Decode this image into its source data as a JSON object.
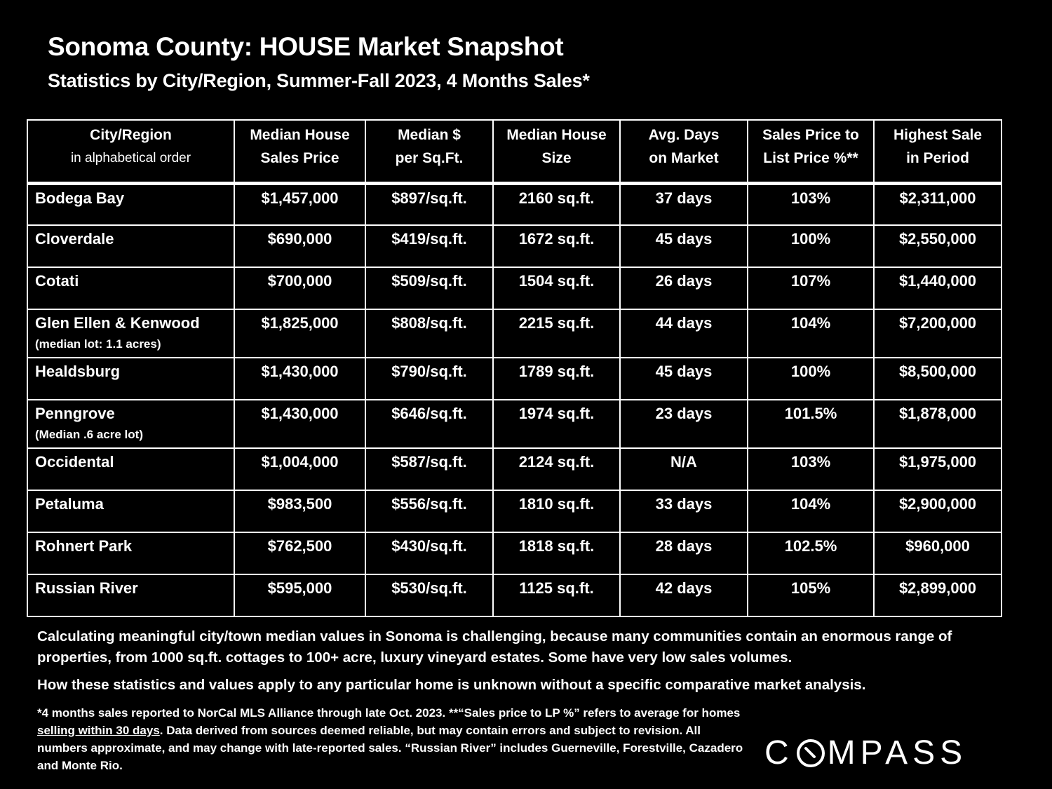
{
  "title": "Sonoma County: HOUSE Market Snapshot",
  "subtitle": "Statistics by City/Region, Summer-Fall 2023, 4 Months Sales*",
  "table": {
    "headers": [
      {
        "line1": "City/Region",
        "line2": "in alphabetical order"
      },
      {
        "line1": "Median House",
        "line2": "Sales Price"
      },
      {
        "line1": "Median $",
        "line2": "per Sq.Ft."
      },
      {
        "line1": "Median House",
        "line2": "Size"
      },
      {
        "line1": "Avg. Days",
        "line2": "on Market"
      },
      {
        "line1": "Sales Price to",
        "line2": "List Price %**"
      },
      {
        "line1": "Highest Sale",
        "line2": "in Period"
      }
    ],
    "rows": [
      {
        "city": "Bodega Bay",
        "note": "",
        "price": "$1,457,000",
        "psf": "$897/sq.ft.",
        "size": "2160 sq.ft.",
        "dom": "37 days",
        "spl": "103%",
        "high": "$2,311,000"
      },
      {
        "city": "Cloverdale",
        "note": "",
        "price": "$690,000",
        "psf": "$419/sq.ft.",
        "size": "1672 sq.ft.",
        "dom": "45 days",
        "spl": "100%",
        "high": "$2,550,000"
      },
      {
        "city": "Cotati",
        "note": "",
        "price": "$700,000",
        "psf": "$509/sq.ft.",
        "size": "1504 sq.ft.",
        "dom": "26 days",
        "spl": "107%",
        "high": "$1,440,000"
      },
      {
        "city": "Glen Ellen & Kenwood",
        "note": "(median lot:  1.1 acres)",
        "price": "$1,825,000",
        "psf": "$808/sq.ft.",
        "size": "2215 sq.ft.",
        "dom": "44 days",
        "spl": "104%",
        "high": "$7,200,000"
      },
      {
        "city": "Healdsburg",
        "note": "",
        "price": "$1,430,000",
        "psf": "$790/sq.ft.",
        "size": "1789 sq.ft.",
        "dom": "45 days",
        "spl": "100%",
        "high": "$8,500,000"
      },
      {
        "city": "Penngrove",
        "note": "(Median .6 acre lot)",
        "price": "$1,430,000",
        "psf": "$646/sq.ft.",
        "size": "1974 sq.ft.",
        "dom": "23 days",
        "spl": "101.5%",
        "high": "$1,878,000"
      },
      {
        "city": "Occidental",
        "note": "",
        "price": "$1,004,000",
        "psf": "$587/sq.ft.",
        "size": "2124 sq.ft.",
        "dom": "N/A",
        "spl": "103%",
        "high": "$1,975,000"
      },
      {
        "city": "Petaluma",
        "note": "",
        "price": "$983,500",
        "psf": "$556/sq.ft.",
        "size": "1810 sq.ft.",
        "dom": "33 days",
        "spl": "104%",
        "high": "$2,900,000"
      },
      {
        "city": "Rohnert Park",
        "note": "",
        "price": "$762,500",
        "psf": "$430/sq.ft.",
        "size": "1818 sq.ft.",
        "dom": "28 days",
        "spl": "102.5%",
        "high": "$960,000"
      },
      {
        "city": "Russian River",
        "note": "",
        "price": "$595,000",
        "psf": "$530/sq.ft.",
        "size": "1125 sq.ft.",
        "dom": "42 days",
        "spl": "105%",
        "high": "$2,899,000"
      }
    ]
  },
  "notes": {
    "para1": "Calculating meaningful city/town median values in Sonoma is challenging, because many communities contain an enormous range of properties, from 1000 sq.ft. cottages to 100+ acre, luxury vineyard estates. Some have very low sales volumes.",
    "para2": "How these statistics and values apply to any particular home is unknown without a specific comparative market analysis."
  },
  "footnote": {
    "before": "*4 months sales reported to NorCal MLS Alliance through late Oct. 2023. **“Sales price to LP %” refers to average for homes ",
    "underlined": "selling within 30 days",
    "after": ". Data derived from sources deemed reliable, but may contain errors and subject to revision. All numbers approximate, and may change with late-reported sales. “Russian River” includes Guerneville, Forestville, Cazadero and Monte Rio."
  },
  "logo": {
    "left": "C",
    "right": "MPASS",
    "icon": "compass-o-icon"
  }
}
